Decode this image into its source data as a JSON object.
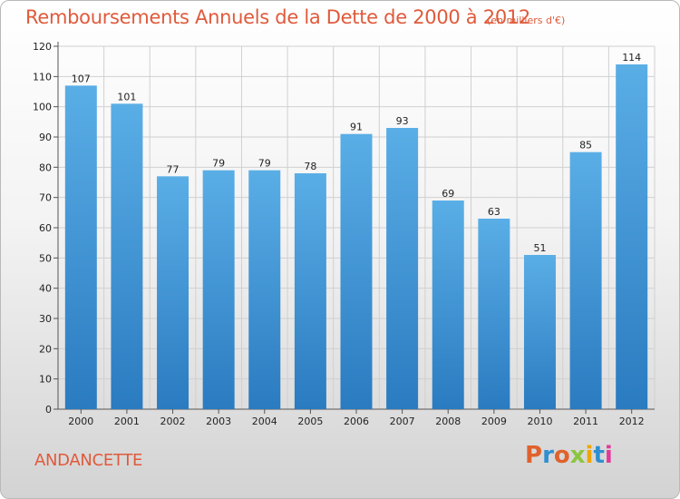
{
  "header": {
    "title": "Remboursements Annuels de la Dette de 2000 à 2012",
    "unit": "(en milliers d'€)"
  },
  "footer": {
    "town": "ANDANCETTE",
    "brand": "Proxiti"
  },
  "colors": {
    "title": "#e05a3b",
    "bar_top": "#5aaee6",
    "bar_bottom": "#2a7bc0",
    "grid": "#d0d0d0",
    "brand_letters": [
      "#e0622b",
      "#2f8fd0",
      "#e0622b",
      "#8cc63f",
      "#f0a500",
      "#2f8fd0",
      "#e03a9a"
    ]
  },
  "chart_data": {
    "type": "bar",
    "categories": [
      "2000",
      "2001",
      "2002",
      "2003",
      "2004",
      "2005",
      "2006",
      "2007",
      "2008",
      "2009",
      "2010",
      "2011",
      "2012"
    ],
    "values": [
      107,
      101,
      77,
      79,
      79,
      78,
      91,
      93,
      69,
      63,
      51,
      85,
      114
    ],
    "ylim": [
      0,
      120
    ],
    "yticks": [
      0,
      10,
      20,
      30,
      40,
      50,
      60,
      70,
      80,
      90,
      100,
      110,
      120
    ],
    "grid": true,
    "data_labels": true
  }
}
